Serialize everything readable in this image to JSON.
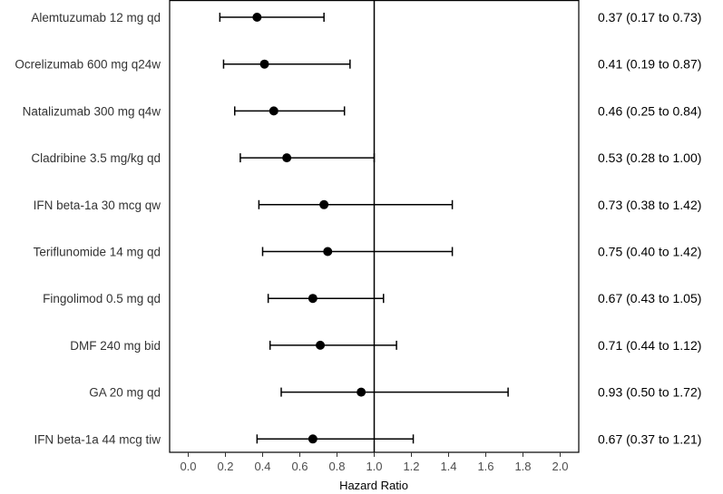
{
  "chart_data": {
    "type": "forest",
    "xlabel": "Hazard Ratio",
    "xlim": [
      -0.1,
      2.1
    ],
    "xticks": [
      0.0,
      0.2,
      0.4,
      0.6,
      0.8,
      1.0,
      1.2,
      1.4,
      1.6,
      1.8,
      2.0
    ],
    "xtick_labels": [
      "0.0",
      "0.2",
      "0.4",
      "0.6",
      "0.8",
      "1.0",
      "1.2",
      "1.4",
      "1.6",
      "1.8",
      "2.0"
    ],
    "reference_line": 1.0,
    "grid": false,
    "rows": [
      {
        "label": "Alemtuzumab 12 mg qd",
        "hr": 0.37,
        "lower": 0.17,
        "upper": 0.73,
        "ci_text": "0.37 (0.17 to 0.73)"
      },
      {
        "label": "Ocrelizumab 600 mg q24w",
        "hr": 0.41,
        "lower": 0.19,
        "upper": 0.87,
        "ci_text": "0.41 (0.19 to 0.87)"
      },
      {
        "label": "Natalizumab 300 mg q4w",
        "hr": 0.46,
        "lower": 0.25,
        "upper": 0.84,
        "ci_text": "0.46 (0.25 to 0.84)"
      },
      {
        "label": "Cladribine 3.5 mg/kg qd",
        "hr": 0.53,
        "lower": 0.28,
        "upper": 1.0,
        "ci_text": "0.53 (0.28 to 1.00)"
      },
      {
        "label": "IFN beta-1a 30 mcg qw",
        "hr": 0.73,
        "lower": 0.38,
        "upper": 1.42,
        "ci_text": "0.73 (0.38 to 1.42)"
      },
      {
        "label": "Teriflunomide 14 mg qd",
        "hr": 0.75,
        "lower": 0.4,
        "upper": 1.42,
        "ci_text": "0.75 (0.40 to 1.42)"
      },
      {
        "label": "Fingolimod 0.5 mg qd",
        "hr": 0.67,
        "lower": 0.43,
        "upper": 1.05,
        "ci_text": "0.67 (0.43 to 1.05)"
      },
      {
        "label": "DMF 240 mg bid",
        "hr": 0.71,
        "lower": 0.44,
        "upper": 1.12,
        "ci_text": "0.71 (0.44 to 1.12)"
      },
      {
        "label": "GA 20 mg qd",
        "hr": 0.93,
        "lower": 0.5,
        "upper": 1.72,
        "ci_text": "0.93 (0.50 to 1.72)"
      },
      {
        "label": "IFN beta-1a 44 mcg tiw",
        "hr": 0.67,
        "lower": 0.37,
        "upper": 1.21,
        "ci_text": "0.67 (0.37 to 1.21)"
      }
    ]
  }
}
